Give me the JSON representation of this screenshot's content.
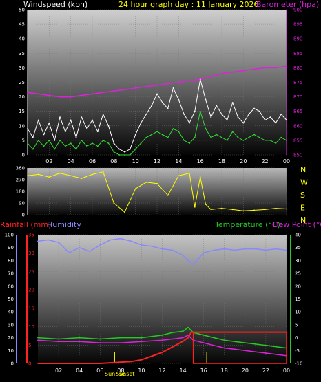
{
  "header": {
    "windspeed_label": "Windspeed (kph)",
    "title": "24 hour graph day : 11 January 2026",
    "barometer_label": "Barometer (hpa)"
  },
  "middle_header": {
    "rainfall_label": "Rainfall (mm)",
    "humidity_label": "Humidity",
    "temperature_label": "Temperature (°C)",
    "dewpoint_label": "Dew Point (°C)"
  },
  "sun": {
    "sunrise_label": "Sunrise",
    "sunset_label": "Sunset",
    "sunrise_hour": 7.4,
    "sunset_hour": 16.3
  },
  "colors": {
    "wind_gust": "#ffffff",
    "wind_avg": "#33dd33",
    "barometer": "#dd22dd",
    "direction": "#ffff00",
    "humidity": "#8888ff",
    "temperature": "#22cc22",
    "dewpoint": "#dd22dd",
    "rain": "#ff2222",
    "left_axis_windspeed": "#ffffff",
    "right_axis_baro": "#dd22dd",
    "rain_axis": "#ff2222",
    "humidity_axis": "#8888ff",
    "temp_axis": "#22cc22"
  },
  "chart_data": [
    {
      "type": "line",
      "name": "wind-barometer",
      "x_ticks": [
        "02",
        "04",
        "06",
        "08",
        "10",
        "12",
        "14",
        "16",
        "18",
        "20",
        "22",
        "00"
      ],
      "ylim_left": [
        0,
        50
      ],
      "yticks_left": [
        "0",
        "5",
        "10",
        "15",
        "20",
        "25",
        "30",
        "35",
        "40",
        "45",
        "50"
      ],
      "ylim_right": [
        850,
        900
      ],
      "yticks_right": [
        "850",
        "855",
        "860",
        "865",
        "870",
        "875",
        "880",
        "885",
        "890",
        "895",
        "900"
      ],
      "series": [
        {
          "key": "barometer",
          "x": [
            0,
            1,
            2,
            3,
            4,
            5,
            6,
            7,
            8,
            9,
            10,
            11,
            12,
            13,
            14,
            15,
            16,
            17,
            18,
            19,
            20,
            21,
            22,
            23,
            24
          ],
          "values": [
            871.5,
            871,
            870.5,
            870,
            870,
            870.5,
            871,
            871.5,
            872,
            872.5,
            873,
            873.5,
            874,
            874.5,
            875,
            875.5,
            876,
            877,
            878,
            878.5,
            879,
            879.5,
            880,
            880,
            880.5
          ]
        },
        {
          "key": "gust",
          "x": [
            0,
            0.5,
            1,
            1.5,
            2,
            2.5,
            3,
            3.5,
            4,
            4.5,
            5,
            5.5,
            6,
            6.5,
            7,
            7.5,
            8,
            8.5,
            9,
            9.5,
            10,
            10.5,
            11,
            11.5,
            12,
            12.5,
            13,
            13.5,
            14,
            14.5,
            15,
            15.5,
            16,
            16.5,
            17,
            17.5,
            18,
            18.5,
            19,
            19.5,
            20,
            20.5,
            21,
            21.5,
            22,
            22.5,
            23,
            23.5,
            24
          ],
          "values": [
            9,
            6,
            12,
            7,
            11,
            5,
            13,
            8,
            12,
            6,
            13,
            9,
            12,
            8,
            14,
            10,
            4,
            2,
            1,
            2,
            7,
            11,
            14,
            17,
            21,
            18,
            16,
            23,
            19,
            14,
            11,
            15,
            26,
            19,
            13,
            17,
            14,
            12,
            18,
            13,
            11,
            14,
            16,
            15,
            12,
            13,
            11,
            14,
            12
          ]
        },
        {
          "key": "average",
          "x": [
            0,
            0.5,
            1,
            1.5,
            2,
            2.5,
            3,
            3.5,
            4,
            4.5,
            5,
            5.5,
            6,
            6.5,
            7,
            7.5,
            8,
            8.5,
            9,
            9.5,
            10,
            10.5,
            11,
            11.5,
            12,
            12.5,
            13,
            13.5,
            14,
            14.5,
            15,
            15.5,
            16,
            16.5,
            17,
            17.5,
            18,
            18.5,
            19,
            19.5,
            20,
            20.5,
            21,
            21.5,
            22,
            22.5,
            23,
            23.5,
            24
          ],
          "values": [
            4,
            2,
            5,
            3,
            5,
            2,
            5,
            3,
            4,
            2,
            5,
            3,
            4,
            3,
            5,
            4,
            1,
            0,
            0,
            0,
            2,
            4,
            6,
            7,
            8,
            7,
            6,
            9,
            8,
            5,
            4,
            6,
            15,
            9,
            6,
            7,
            6,
            5,
            8,
            6,
            5,
            6,
            7,
            6,
            5,
            5,
            4,
            6,
            5
          ]
        }
      ]
    },
    {
      "type": "line",
      "name": "wind-direction",
      "ylim": [
        0,
        360
      ],
      "yticks": [
        "0",
        "90",
        "180",
        "270",
        "360"
      ],
      "compass_labels": [
        "N",
        "W",
        "S",
        "E",
        "N"
      ],
      "series": [
        {
          "key": "direction",
          "x": [
            0,
            1,
            2,
            3,
            4,
            5,
            6,
            7,
            8,
            9,
            10,
            11,
            12,
            13,
            14,
            15,
            15.5,
            16,
            16.5,
            17,
            18,
            19,
            20,
            21,
            22,
            23,
            24
          ],
          "values": [
            300,
            310,
            290,
            320,
            300,
            280,
            310,
            330,
            90,
            20,
            200,
            250,
            240,
            150,
            300,
            320,
            60,
            290,
            80,
            40,
            50,
            40,
            30,
            35,
            40,
            50,
            45
          ]
        }
      ]
    },
    {
      "type": "line",
      "name": "temperature-humidity-rain",
      "ylim_rain": [
        0,
        35
      ],
      "yticks_rain": [
        "0",
        "5",
        "10",
        "15",
        "20",
        "25",
        "30",
        "35"
      ],
      "ylim_humidity": [
        0,
        100
      ],
      "yticks_humidity": [
        "0",
        "10",
        "20",
        "30",
        "40",
        "50",
        "60",
        "70",
        "80",
        "90",
        "100"
      ],
      "ylim_temp": [
        -10,
        40
      ],
      "yticks_temp": [
        "-10",
        "-5",
        "0",
        "5",
        "10",
        "15",
        "20",
        "25",
        "30",
        "35",
        "40"
      ],
      "x_ticks": [
        "02",
        "04",
        "06",
        "08",
        "10",
        "12",
        "14",
        "16",
        "18",
        "20",
        "22",
        "00"
      ],
      "series": [
        {
          "key": "humidity",
          "x": [
            0,
            1,
            2,
            3,
            4,
            5,
            6,
            7,
            8,
            9,
            10,
            11,
            12,
            13,
            14,
            14.5,
            15,
            16,
            17,
            18,
            19,
            20,
            21,
            22,
            23,
            24
          ],
          "values": [
            95,
            96,
            94,
            86,
            90,
            87,
            92,
            96,
            97,
            95,
            92,
            91,
            89,
            88,
            84,
            80,
            77,
            86,
            88,
            89,
            88,
            89,
            89,
            88,
            89,
            88
          ]
        },
        {
          "key": "temperature",
          "x": [
            0,
            2,
            4,
            6,
            8,
            10,
            12,
            13,
            14,
            14.5,
            15,
            16,
            17,
            18,
            19,
            20,
            21,
            22,
            23,
            24
          ],
          "values": [
            0,
            -0.5,
            0,
            -0.5,
            0,
            0,
            1,
            2,
            2.5,
            4,
            2,
            1,
            0,
            -1,
            -1.5,
            -2,
            -2.5,
            -3,
            -3.5,
            -4
          ]
        },
        {
          "key": "dewpoint",
          "x": [
            0,
            2,
            4,
            6,
            8,
            10,
            12,
            13,
            14,
            14.5,
            15,
            16,
            17,
            18,
            19,
            20,
            21,
            22,
            23,
            24
          ],
          "values": [
            -1,
            -1.5,
            -1.5,
            -2,
            -2,
            -1.5,
            -1,
            -0.5,
            0,
            1,
            -1,
            -2,
            -3,
            -4,
            -4.5,
            -5,
            -5.5,
            -6,
            -6.5,
            -7
          ]
        },
        {
          "key": "rain",
          "x": [
            0,
            4,
            6,
            9,
            10,
            11,
            12,
            13,
            14,
            14.5,
            14.8,
            15,
            24
          ],
          "values": [
            0,
            0,
            0,
            0.5,
            1,
            2,
            3,
            4.5,
            6,
            7,
            8.5,
            8.5,
            8.5
          ]
        }
      ]
    }
  ]
}
